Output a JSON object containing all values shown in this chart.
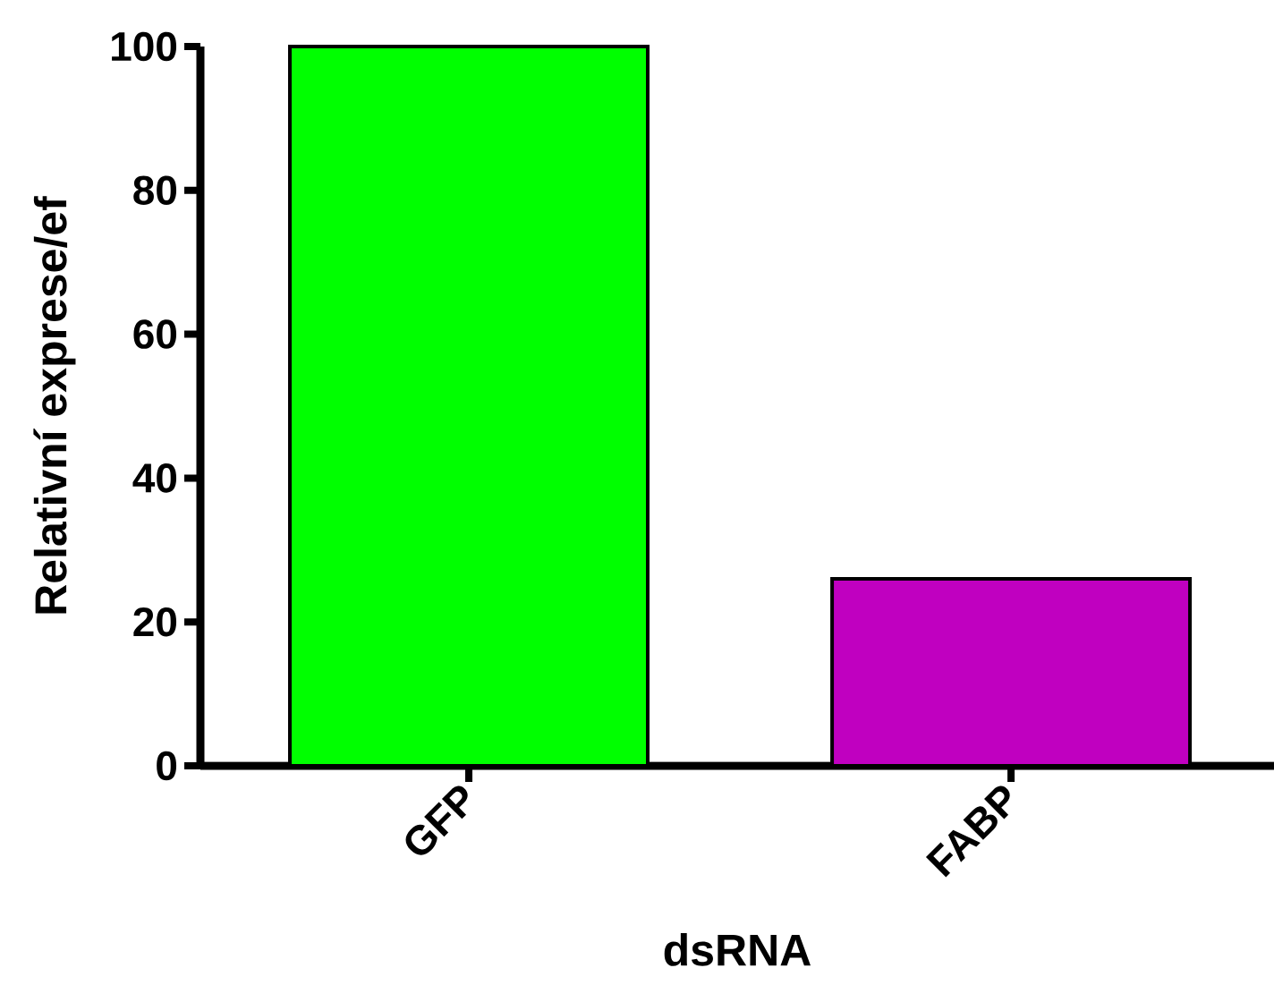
{
  "chart_data": {
    "type": "bar",
    "xlabel": "dsRNA",
    "ylabel": "Relativní exprese/ef",
    "categories": [
      "GFP",
      "FABP"
    ],
    "values": [
      100,
      26
    ],
    "colors": [
      "#00ff00",
      "#c000c0"
    ],
    "ylim": [
      0,
      100
    ],
    "yticks": [
      0,
      20,
      40,
      60,
      80,
      100
    ]
  }
}
